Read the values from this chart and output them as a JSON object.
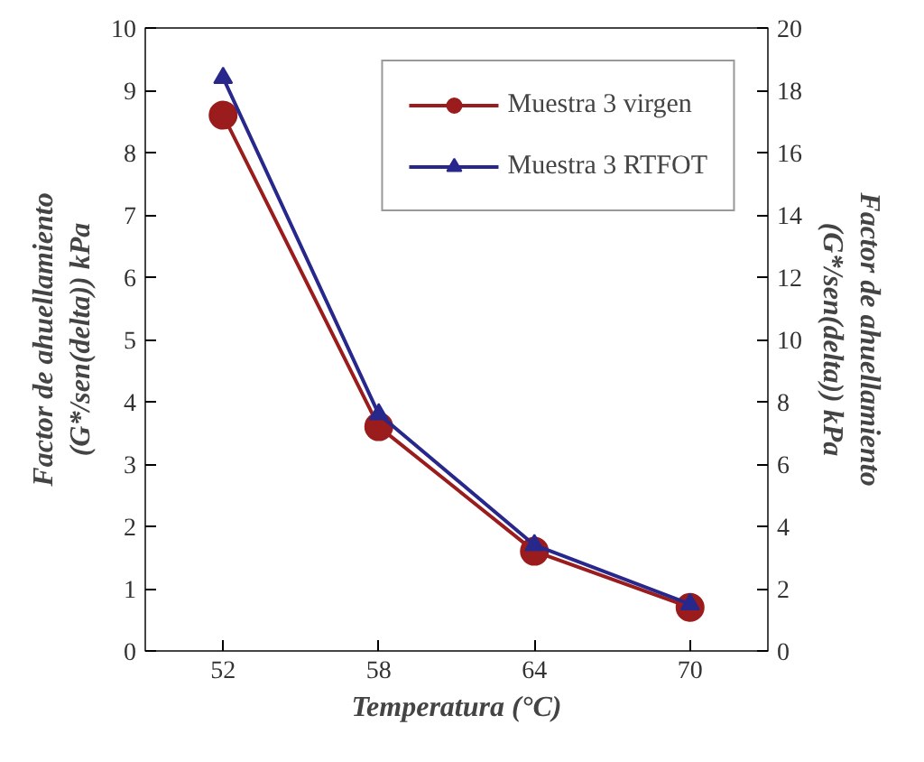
{
  "chart_data": {
    "type": "line",
    "categories": [
      "52",
      "58",
      "64",
      "70"
    ],
    "xlabel": "Temperatura (°C)",
    "ylabel": "Factor de ahuellamiento\n(G*/sen(delta)) kPa",
    "y2label": "Factor de ahuellamiento\n(G*/sen(delta)) kPa",
    "ylim": [
      0,
      10
    ],
    "yticks": [
      0,
      1,
      2,
      3,
      4,
      5,
      6,
      7,
      8,
      9,
      10
    ],
    "y2lim": [
      0,
      20
    ],
    "y2ticks": [
      0,
      2,
      4,
      6,
      8,
      10,
      12,
      14,
      16,
      18,
      20
    ],
    "grid": false,
    "legend": "top right",
    "line_style": "solid",
    "series": [
      {
        "name": "Muestra 3 virgen",
        "color": "#9b1c1c",
        "marker": "circle",
        "values": [
          8.6,
          3.6,
          1.6,
          0.7
        ]
      },
      {
        "name": "Muestra 3 RTFOT",
        "color": "#28288c",
        "marker": "triangle",
        "values": [
          9.2,
          3.8,
          1.7,
          0.75
        ]
      }
    ]
  }
}
